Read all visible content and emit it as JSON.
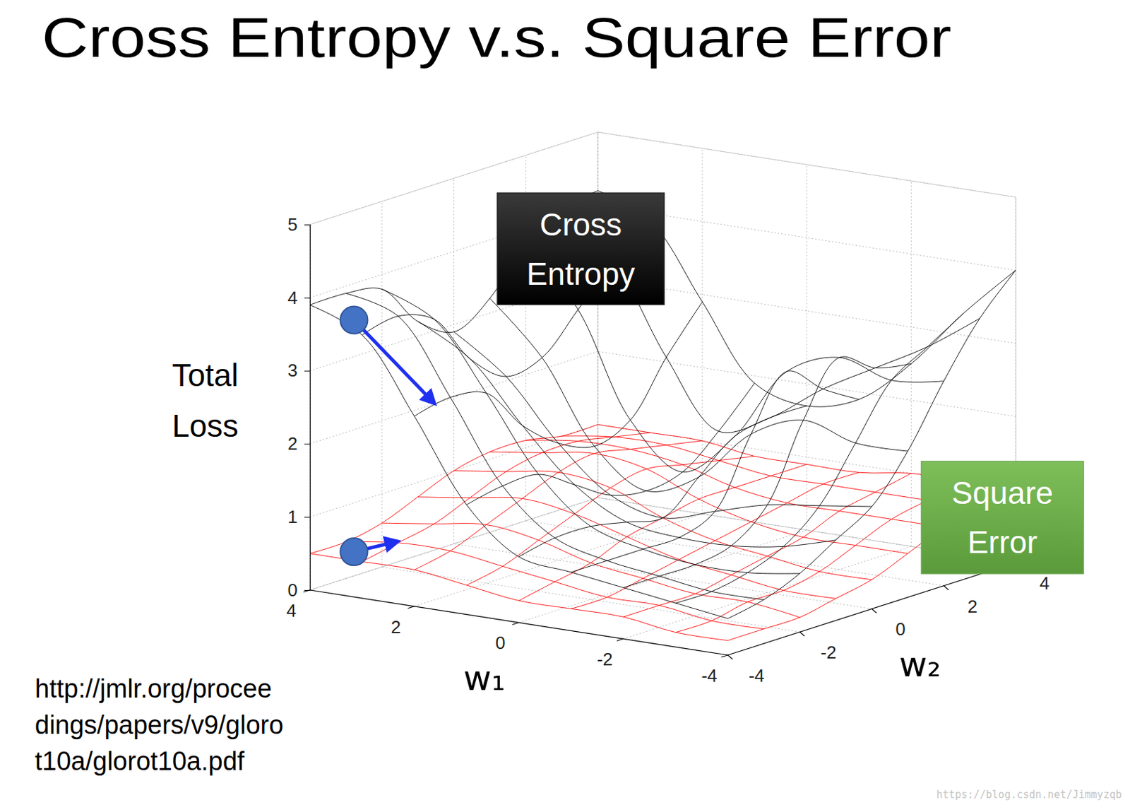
{
  "chart_data": {
    "type": "surface",
    "title": "Cross Entropy v.s. Square Error",
    "x_label": "w₁",
    "y_label": "w₂",
    "z_label": "Total Loss",
    "x": [
      -4,
      -3,
      -2,
      -1,
      0,
      1,
      2,
      3,
      4
    ],
    "y": [
      -4,
      -3,
      -2,
      -1,
      0,
      1,
      2,
      3,
      4
    ],
    "xlim": [
      -4,
      4
    ],
    "ylim": [
      -4,
      4
    ],
    "zlim": [
      0,
      5
    ],
    "xticks": [
      -4,
      -2,
      0,
      2,
      4
    ],
    "yticks": [
      -4,
      -2,
      0,
      2,
      4
    ],
    "zticks": [
      0,
      1,
      2,
      3,
      4,
      5
    ],
    "grid": true,
    "series": [
      {
        "name": "Cross Entropy",
        "color": "#000000",
        "values": [
          [
            0.5,
            0.6,
            0.7,
            0.8,
            0.9,
            1.5,
            2.6,
            3.6,
            3.9
          ],
          [
            0.6,
            0.6,
            0.7,
            0.8,
            1.0,
            1.6,
            2.7,
            3.7,
            3.9
          ],
          [
            0.8,
            0.7,
            0.7,
            0.8,
            1.0,
            1.6,
            2.6,
            3.5,
            3.8
          ],
          [
            1.1,
            0.9,
            0.8,
            0.8,
            0.9,
            1.3,
            2.0,
            2.8,
            3.2
          ],
          [
            1.4,
            1.3,
            1.2,
            1.0,
            0.8,
            1.0,
            1.6,
            2.4,
            2.9
          ],
          [
            2.0,
            2.0,
            2.2,
            1.9,
            1.2,
            0.9,
            1.4,
            2.5,
            3.2
          ],
          [
            2.8,
            2.7,
            2.9,
            2.6,
            1.6,
            1.0,
            1.6,
            3.0,
            3.8
          ],
          [
            3.5,
            3.0,
            2.6,
            2.2,
            1.7,
            1.4,
            2.3,
            3.5,
            4.1
          ],
          [
            4.0,
            3.3,
            2.5,
            1.9,
            1.7,
            1.9,
            2.9,
            3.9,
            4.2
          ]
        ],
        "arrow": {
          "from": [
            3.5,
            -3.5,
            3.67
          ],
          "to": [
            2.3,
            -3,
            2.58
          ]
        }
      },
      {
        "name": "Square Error",
        "color": "#ff0000",
        "values": [
          [
            0.2,
            0.2,
            0.3,
            0.3,
            0.3,
            0.4,
            0.5,
            0.5,
            0.5
          ],
          [
            0.2,
            0.2,
            0.3,
            0.3,
            0.4,
            0.5,
            0.6,
            0.6,
            0.5
          ],
          [
            0.2,
            0.3,
            0.3,
            0.4,
            0.5,
            0.7,
            0.8,
            0.7,
            0.6
          ],
          [
            0.3,
            0.3,
            0.4,
            0.5,
            0.7,
            0.9,
            1.0,
            0.9,
            0.8
          ],
          [
            0.4,
            0.4,
            0.5,
            0.6,
            0.8,
            1.1,
            1.2,
            1.1,
            1.0
          ],
          [
            0.6,
            0.6,
            0.6,
            0.7,
            0.9,
            1.2,
            1.3,
            1.2,
            1.1
          ],
          [
            0.8,
            0.8,
            0.8,
            0.8,
            0.9,
            1.1,
            1.2,
            1.2,
            1.1
          ],
          [
            0.9,
            0.9,
            0.9,
            0.9,
            0.9,
            1.0,
            1.1,
            1.1,
            1.0
          ],
          [
            1.0,
            1.0,
            1.0,
            0.9,
            0.9,
            0.9,
            1.0,
            1.0,
            1.0
          ]
        ],
        "arrow": {
          "from": [
            3.5,
            -3.5,
            0.5
          ],
          "to": [
            3,
            -3,
            0.62
          ]
        }
      }
    ],
    "source": [
      "http://jmlr.org/procee",
      "dings/papers/v9/gloro",
      "t10a/glorot10a.pdf"
    ],
    "watermark": "https://blog.csdn.net/Jimmyzqb"
  }
}
